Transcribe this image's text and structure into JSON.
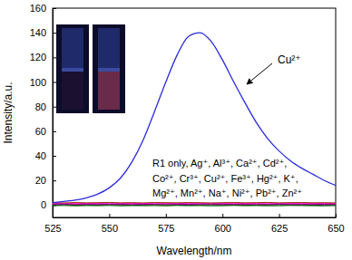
{
  "chart_data": {
    "type": "line",
    "x_label": "Wavelength/nm",
    "y_label": "Intensity/a.u.",
    "x": [
      525,
      530,
      535,
      540,
      545,
      550,
      555,
      560,
      565,
      570,
      575,
      580,
      585,
      590,
      595,
      600,
      605,
      610,
      615,
      620,
      625,
      630,
      635,
      640,
      645,
      650
    ],
    "series": [
      {
        "name": "Cu²⁺",
        "color": "#2a2ae0",
        "values": [
          2,
          3,
          4,
          6,
          9,
          14,
          22,
          35,
          53,
          76,
          100,
          122,
          137,
          140,
          133,
          118,
          100,
          83,
          67,
          54,
          44,
          36,
          30,
          25,
          20,
          16
        ]
      },
      {
        "color": "#cc0000",
        "values": [
          1,
          1.2,
          0.8,
          1,
          1.1,
          0.9,
          1,
          1.2,
          1,
          0.8,
          1,
          1.1,
          0.9,
          1,
          1.2,
          1,
          0.9,
          1.1,
          1,
          0.8,
          1,
          1.1,
          0.9,
          1,
          1,
          0.9
        ]
      },
      {
        "color": "#990099",
        "values": [
          0.5,
          0.7,
          0.4,
          0.6,
          0.5,
          0.8,
          0.6,
          0.5,
          0.7,
          0.6,
          0.4,
          0.6,
          0.7,
          0.5,
          0.6,
          0.8,
          0.5,
          0.6,
          0.4,
          0.6,
          0.7,
          0.5,
          0.6,
          0.5,
          0.7,
          0.5
        ]
      },
      {
        "color": "#333333",
        "values": [
          0,
          0.2,
          -0.1,
          0.1,
          0,
          0.2,
          0.1,
          -0.1,
          0,
          0.2,
          0.1,
          0,
          -0.1,
          0.1,
          0.2,
          0,
          0.1,
          -0.1,
          0,
          0.1,
          0.2,
          0,
          0.1,
          -0.1,
          0,
          0.1
        ]
      },
      {
        "color": "#ff00ff",
        "values": [
          1.5,
          1.3,
          1.6,
          1.4,
          1.5,
          1.7,
          1.4,
          1.5,
          1.3,
          1.6,
          1.5,
          1.4,
          1.6,
          1.5,
          1.3,
          1.5,
          1.6,
          1.4,
          1.5,
          1.7,
          1.4,
          1.5,
          1.6,
          1.4,
          1.5,
          1.3
        ]
      },
      {
        "color": "#006600",
        "values": [
          -0.5,
          -0.3,
          -0.6,
          -0.4,
          -0.5,
          -0.3,
          -0.6,
          -0.4,
          -0.5,
          -0.4,
          -0.6,
          -0.3,
          -0.5,
          -0.4,
          -0.6,
          -0.5,
          -0.3,
          -0.5,
          -0.4,
          -0.6,
          -0.5,
          -0.3,
          -0.4,
          -0.5,
          -0.6,
          -0.4
        ]
      },
      {
        "color": "#993300",
        "values": [
          2,
          1.8,
          2.1,
          1.9,
          2,
          2.2,
          1.9,
          2,
          1.8,
          2.1,
          2,
          1.9,
          2.1,
          2,
          1.8,
          2,
          2.1,
          1.9,
          2,
          2.2,
          1.9,
          2,
          2.1,
          1.9,
          2,
          1.8
        ]
      }
    ],
    "annotations": [
      "R1 only, Ag⁺, Al³⁺, Ca²⁺, Cd²⁺,",
      "Co²⁺, Cr³⁺, Cu²⁺, Fe³⁺, Hg²⁺, K⁺,",
      "Mg²⁺, Mn²⁺, Na⁺, Ni²⁺, Pb²⁺, Zn²⁺"
    ],
    "xlim": [
      525,
      650
    ],
    "xticks": [
      525,
      550,
      575,
      600,
      625,
      650
    ],
    "ylim": [
      -10,
      160
    ],
    "yticks": [
      0,
      20,
      40,
      60,
      80,
      100,
      120,
      140,
      160
    ],
    "grid": false
  }
}
